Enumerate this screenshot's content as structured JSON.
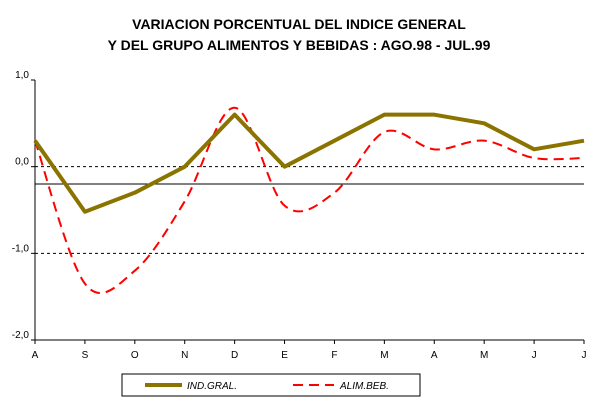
{
  "chart_data": {
    "type": "line",
    "title_lines": [
      "VARIACION PORCENTUAL DEL INDICE GENERAL",
      "Y DEL GRUPO ALIMENTOS Y BEBIDAS : AGO.98 - JUL.99"
    ],
    "categories": [
      "A",
      "S",
      "O",
      "N",
      "D",
      "E",
      "F",
      "M",
      "A",
      "M",
      "J",
      "J"
    ],
    "y_tick_labels": [
      "1,0",
      "0,0",
      "-1,0",
      "-2,0"
    ],
    "y_tick_values": [
      1.0,
      0.0,
      -1.0,
      -2.0
    ],
    "ylim": [
      -2.0,
      1.0
    ],
    "dashed_gridlines": [
      0.0,
      -1.0
    ],
    "reference_line": -0.2,
    "series": [
      {
        "name": "IND.GRAL.",
        "color": "#8B7300",
        "style": "solid",
        "values": [
          0.3,
          -0.52,
          -0.3,
          0.0,
          0.6,
          0.0,
          0.3,
          0.6,
          0.6,
          0.5,
          0.2,
          0.3
        ]
      },
      {
        "name": "ALIM.BEB.",
        "color": "#ff0000",
        "style": "dashed",
        "values": [
          0.3,
          -1.35,
          -1.2,
          -0.4,
          0.68,
          -0.45,
          -0.3,
          0.4,
          0.2,
          0.3,
          0.1,
          0.1
        ]
      }
    ]
  }
}
